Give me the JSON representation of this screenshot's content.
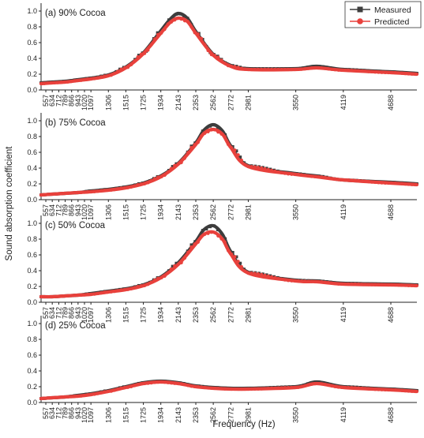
{
  "figure": {
    "ylabel": "Sound absorption coefficient",
    "xlabel": "Frequency (Hz)",
    "legend": {
      "position": "top-right",
      "entries": [
        {
          "label": "Measured",
          "color": "#3d3d3d",
          "marker": "square"
        },
        {
          "label": "Predicted",
          "color": "#e8413c",
          "marker": "circle"
        }
      ]
    },
    "colors": {
      "measured": "#3d3d3d",
      "predicted": "#e8413c",
      "axis": "#222222"
    }
  },
  "chart_data": [
    {
      "type": "line",
      "panel_label": "(a) 90% Cocoa",
      "x_ticks": [
        557,
        634,
        712,
        789,
        866,
        943,
        1020,
        1097,
        1306,
        1515,
        1725,
        1934,
        2143,
        2353,
        2562,
        2772,
        2981,
        3550,
        4119,
        4688
      ],
      "y_ticks": [
        "0.0",
        "0.2",
        "0.4",
        "0.6",
        "0.8",
        "1.0"
      ],
      "ylim": [
        0,
        1.1
      ],
      "series": [
        {
          "name": "Measured",
          "x": [
            500,
            634,
            789,
            943,
            1097,
            1306,
            1515,
            1725,
            1934,
            2050,
            2143,
            2250,
            2353,
            2562,
            2772,
            2981,
            3550,
            3800,
            4119,
            4688,
            5000
          ],
          "y": [
            0.09,
            0.1,
            0.11,
            0.13,
            0.15,
            0.19,
            0.29,
            0.47,
            0.75,
            0.9,
            0.97,
            0.91,
            0.74,
            0.45,
            0.31,
            0.27,
            0.27,
            0.3,
            0.26,
            0.23,
            0.21
          ]
        },
        {
          "name": "Predicted",
          "x": [
            500,
            634,
            789,
            943,
            1097,
            1306,
            1515,
            1725,
            1934,
            2050,
            2143,
            2250,
            2353,
            2562,
            2772,
            2981,
            3550,
            3800,
            4119,
            4688,
            5000
          ],
          "y": [
            0.08,
            0.09,
            0.1,
            0.12,
            0.14,
            0.18,
            0.28,
            0.46,
            0.72,
            0.86,
            0.91,
            0.87,
            0.72,
            0.44,
            0.3,
            0.26,
            0.26,
            0.28,
            0.25,
            0.22,
            0.2
          ]
        }
      ]
    },
    {
      "type": "line",
      "panel_label": "(b) 75% Cocoa",
      "x_ticks": [
        557,
        634,
        712,
        789,
        866,
        943,
        1020,
        1097,
        1306,
        1515,
        1725,
        1934,
        2143,
        2353,
        2562,
        2772,
        2981,
        3550,
        4119,
        4688
      ],
      "y_ticks": [
        "0.0",
        "0.2",
        "0.4",
        "0.6",
        "0.8",
        "1.0"
      ],
      "ylim": [
        0,
        1.1
      ],
      "series": [
        {
          "name": "Measured",
          "x": [
            500,
            634,
            789,
            943,
            1097,
            1306,
            1515,
            1725,
            1934,
            2143,
            2353,
            2450,
            2562,
            2672,
            2772,
            2981,
            3550,
            3800,
            4119,
            4688,
            5000
          ],
          "y": [
            0.06,
            0.07,
            0.08,
            0.09,
            0.11,
            0.13,
            0.16,
            0.21,
            0.3,
            0.46,
            0.72,
            0.88,
            0.95,
            0.87,
            0.68,
            0.43,
            0.33,
            0.3,
            0.25,
            0.22,
            0.2
          ]
        },
        {
          "name": "Predicted",
          "x": [
            500,
            634,
            789,
            943,
            1097,
            1306,
            1515,
            1725,
            1934,
            2143,
            2353,
            2450,
            2562,
            2672,
            2772,
            2981,
            3550,
            3800,
            4119,
            4688,
            5000
          ],
          "y": [
            0.06,
            0.07,
            0.08,
            0.09,
            0.1,
            0.12,
            0.15,
            0.2,
            0.29,
            0.45,
            0.7,
            0.84,
            0.89,
            0.83,
            0.66,
            0.42,
            0.32,
            0.29,
            0.25,
            0.21,
            0.19
          ]
        }
      ]
    },
    {
      "type": "line",
      "panel_label": "(c) 50% Cocoa",
      "x_ticks": [
        557,
        634,
        712,
        789,
        866,
        943,
        1020,
        1097,
        1306,
        1515,
        1725,
        1934,
        2143,
        2353,
        2562,
        2772,
        2981,
        3550,
        4119,
        4688
      ],
      "y_ticks": [
        "0.0",
        "0.2",
        "0.4",
        "0.6",
        "0.8",
        "1.0"
      ],
      "ylim": [
        0,
        1.1
      ],
      "series": [
        {
          "name": "Measured",
          "x": [
            500,
            634,
            789,
            943,
            1097,
            1306,
            1515,
            1725,
            1934,
            2143,
            2353,
            2450,
            2562,
            2672,
            2772,
            2981,
            3550,
            3800,
            4119,
            4688,
            5000
          ],
          "y": [
            0.07,
            0.07,
            0.08,
            0.09,
            0.11,
            0.14,
            0.17,
            0.22,
            0.32,
            0.5,
            0.77,
            0.92,
            0.97,
            0.86,
            0.64,
            0.38,
            0.28,
            0.27,
            0.24,
            0.23,
            0.22
          ]
        },
        {
          "name": "Predicted",
          "x": [
            500,
            634,
            789,
            943,
            1097,
            1306,
            1515,
            1725,
            1934,
            2143,
            2353,
            2450,
            2562,
            2672,
            2772,
            2981,
            3550,
            3800,
            4119,
            4688,
            5000
          ],
          "y": [
            0.07,
            0.07,
            0.08,
            0.09,
            0.1,
            0.13,
            0.16,
            0.21,
            0.31,
            0.48,
            0.74,
            0.86,
            0.89,
            0.8,
            0.61,
            0.37,
            0.27,
            0.26,
            0.23,
            0.22,
            0.21
          ]
        }
      ]
    },
    {
      "type": "line",
      "panel_label": "(d) 25% Cocoa",
      "x_ticks": [
        557,
        634,
        712,
        789,
        866,
        943,
        1020,
        1097,
        1306,
        1515,
        1725,
        1934,
        2143,
        2353,
        2562,
        2772,
        2981,
        3550,
        4119,
        4688
      ],
      "y_ticks": [
        "0.0",
        "0.2",
        "0.4",
        "0.6",
        "0.8",
        "1.0"
      ],
      "ylim": [
        0,
        1.1
      ],
      "series": [
        {
          "name": "Measured",
          "x": [
            500,
            634,
            789,
            943,
            1097,
            1306,
            1515,
            1725,
            1934,
            2143,
            2353,
            2562,
            2772,
            2981,
            3550,
            3800,
            4119,
            4688,
            5000
          ],
          "y": [
            0.05,
            0.06,
            0.07,
            0.09,
            0.11,
            0.15,
            0.2,
            0.25,
            0.27,
            0.25,
            0.21,
            0.19,
            0.18,
            0.18,
            0.2,
            0.26,
            0.2,
            0.17,
            0.15
          ]
        },
        {
          "name": "Predicted",
          "x": [
            500,
            634,
            789,
            943,
            1097,
            1306,
            1515,
            1725,
            1934,
            2143,
            2353,
            2562,
            2772,
            2981,
            3550,
            3800,
            4119,
            4688,
            5000
          ],
          "y": [
            0.05,
            0.06,
            0.07,
            0.08,
            0.1,
            0.14,
            0.19,
            0.24,
            0.26,
            0.24,
            0.2,
            0.18,
            0.17,
            0.17,
            0.19,
            0.24,
            0.19,
            0.16,
            0.14
          ]
        }
      ]
    }
  ]
}
